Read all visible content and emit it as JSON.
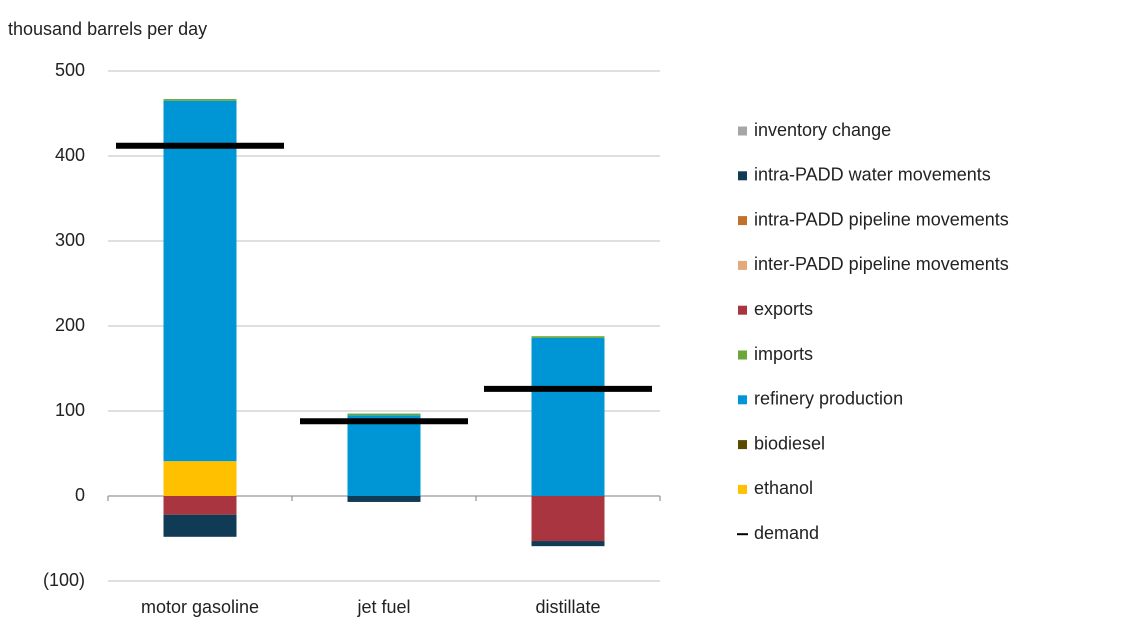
{
  "chart_data": {
    "type": "stacked-bar",
    "y_label": "thousand barrels per day",
    "categories": [
      "motor gasoline",
      "jet fuel",
      "distillate"
    ],
    "series": [
      {
        "name": "inventory change",
        "color": "#a6a6a6",
        "values": [
          0,
          0,
          0
        ]
      },
      {
        "name": "intra-PADD water movements",
        "color": "#0f3b54",
        "values": [
          -26,
          -7,
          -6
        ]
      },
      {
        "name": "intra-PADD pipeline movements",
        "color": "#c0722a",
        "values": [
          0,
          0,
          0
        ]
      },
      {
        "name": "inter-PADD pipeline movements",
        "color": "#e3a97a",
        "values": [
          0,
          0,
          0
        ]
      },
      {
        "name": "exports",
        "color": "#a8353f",
        "values": [
          -22,
          0,
          -53
        ]
      },
      {
        "name": "imports",
        "color": "#6aa63a",
        "values": [
          2,
          2,
          2
        ]
      },
      {
        "name": "refinery production",
        "color": "#0096d6",
        "values": [
          424,
          95,
          186
        ]
      },
      {
        "name": "biodiesel",
        "color": "#5a4a00",
        "values": [
          0,
          0,
          0
        ]
      },
      {
        "name": "ethanol",
        "color": "#ffc000",
        "values": [
          41,
          0,
          0
        ]
      },
      {
        "name": "demand",
        "color": "#000000",
        "kind": "line",
        "values": [
          412,
          88,
          126
        ]
      }
    ],
    "ylim": [
      -100,
      500
    ],
    "yticks": [
      {
        "value": -100,
        "label": "(100)"
      },
      0,
      100,
      200,
      300,
      400,
      500
    ],
    "grid": true,
    "legend": "right"
  }
}
